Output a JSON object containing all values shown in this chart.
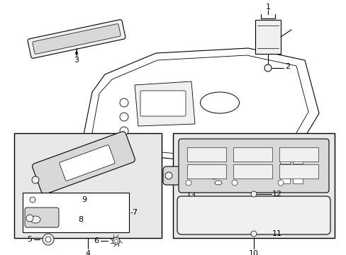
{
  "bg_color": "#ffffff",
  "fig_width": 4.89,
  "fig_height": 3.6,
  "dpi": 100,
  "line_color": "#000000",
  "gray_fill": "#f0f0f0",
  "dark_fill": "#d8d8d8",
  "box_fill": "#e8e8e8"
}
